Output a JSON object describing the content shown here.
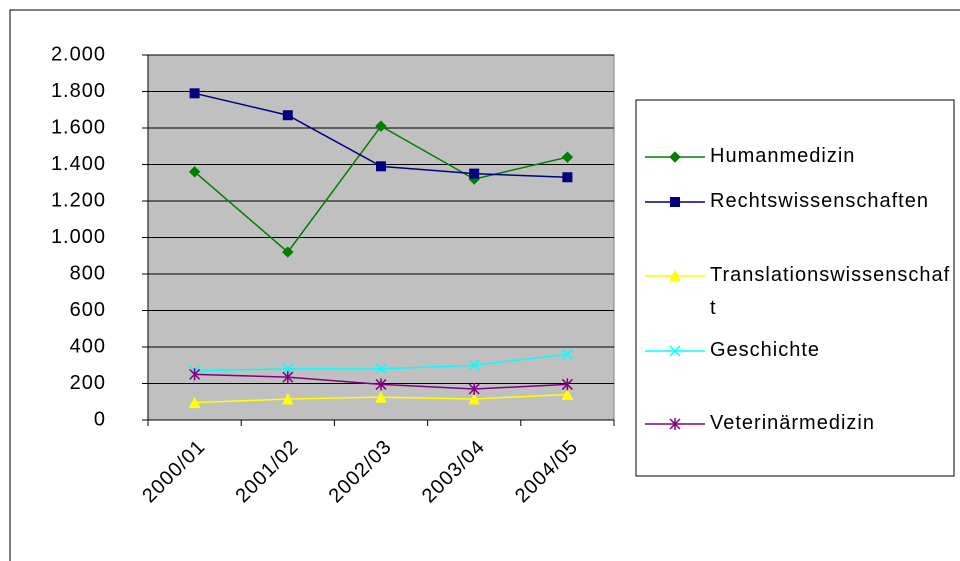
{
  "chart_data": {
    "type": "line",
    "categories": [
      "2000/01",
      "2001/02",
      "2002/03",
      "2003/04",
      "2004/05"
    ],
    "series": [
      {
        "name": "Humanmedizin",
        "color": "#008000",
        "marker": "diamond",
        "values": [
          1360,
          920,
          1610,
          1320,
          1440
        ]
      },
      {
        "name": "Rechtswissenschaften",
        "color": "#000080",
        "marker": "square",
        "values": [
          1790,
          1670,
          1390,
          1350,
          1330
        ]
      },
      {
        "name": "Translationswissenschaft",
        "color": "#ffff00",
        "marker": "triangle",
        "values": [
          95,
          115,
          125,
          115,
          140
        ]
      },
      {
        "name": "Geschichte",
        "color": "#00ffff",
        "marker": "x",
        "values": [
          270,
          280,
          280,
          300,
          360
        ]
      },
      {
        "name": "Veterinärmedizin",
        "color": "#800080",
        "marker": "star",
        "values": [
          250,
          235,
          195,
          170,
          195
        ]
      }
    ],
    "ylim": [
      0,
      2000
    ],
    "yticks": [
      0,
      200,
      400,
      600,
      800,
      {
        "value": 1000,
        "label": "1.000"
      },
      {
        "value": 1200,
        "label": "1.200"
      },
      {
        "value": 1400,
        "label": "1.400"
      },
      {
        "value": 1600,
        "label": "1.600"
      },
      {
        "value": 1800,
        "label": "1.800"
      },
      {
        "value": 2000,
        "label": "2.000"
      }
    ],
    "grid": true,
    "plot_background": "#c0c0c0",
    "legend": "right"
  }
}
